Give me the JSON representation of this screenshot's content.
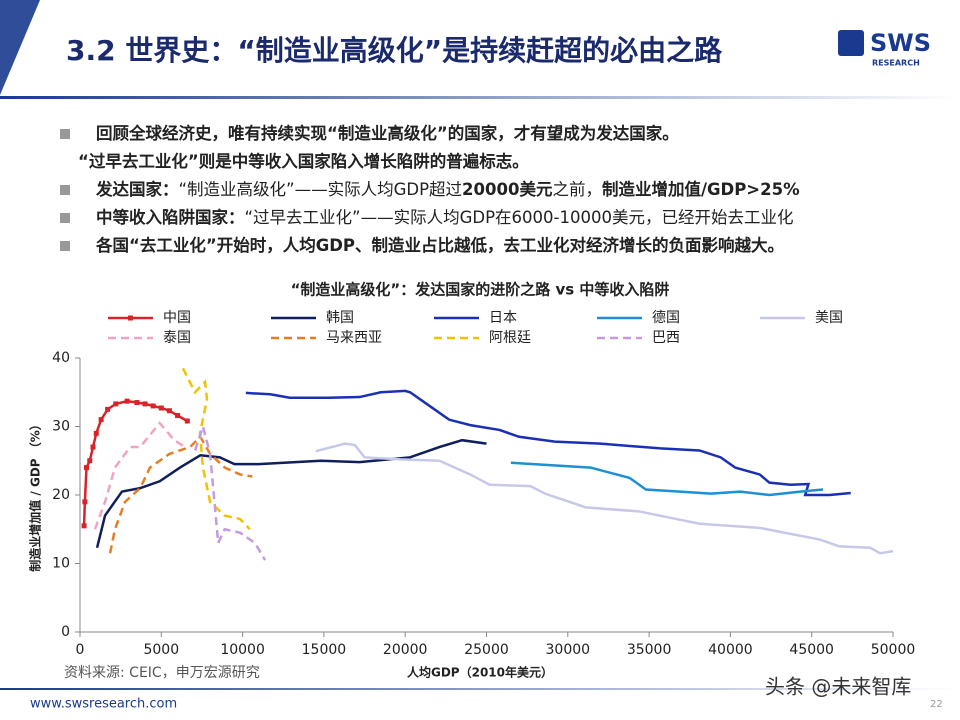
{
  "header": {
    "title": "3.2 世界史：“制造业高级化”是持续赶超的必由之路",
    "logo": "SWS",
    "logo_sub": "RESEARCH"
  },
  "bullets": [
    {
      "lines": [
        [
          {
            "text": "回顾全球经济史，唯有持续实现“制造业高级化”的国家，才有望成为发达国家。",
            "bold": true
          }
        ],
        [
          {
            "text": "“过早去工业化”则是中等收入国家陷入增长陷阱的普遍标志。",
            "bold": true
          }
        ]
      ]
    },
    {
      "lines": [
        [
          {
            "text": "发达国家：",
            "bold": true
          },
          {
            "text": "“制造业高级化”——实际人均GDP超过",
            "bold": false
          },
          {
            "text": "20000美元",
            "bold": true
          },
          {
            "text": "之前，",
            "bold": false
          },
          {
            "text": "制造业增加值/GDP>25%",
            "bold": true
          }
        ]
      ]
    },
    {
      "lines": [
        [
          {
            "text": "中等收入陷阱国家：",
            "bold": true
          },
          {
            "text": "“过早去工业化”——实际人均GDP在6000-10000美元，已经开始去工业化",
            "bold": false
          }
        ]
      ]
    },
    {
      "lines": [
        [
          {
            "text": "各国“去工业化”开始时，人均GDP、制造业占比越低，去工业化对经济增长的负面影响越大。",
            "bold": true
          }
        ]
      ]
    }
  ],
  "chart_data": {
    "type": "line",
    "title": "“制造业高级化”：发达国家的进阶之路 vs 中等收入陷阱",
    "x_label": "人均GDP（2010年美元）",
    "y_label": "制造业增加值 / GDP （%）",
    "xlim": [
      0,
      50000
    ],
    "xticks": [
      0,
      5000,
      10000,
      15000,
      20000,
      25000,
      30000,
      35000,
      40000,
      45000,
      50000
    ],
    "ylim": [
      0,
      40
    ],
    "yticks": [
      0,
      10,
      20,
      30,
      40
    ],
    "grid": false,
    "series": [
      {
        "name": "中国",
        "color": "#d9232a",
        "dashed": false,
        "marker": "square",
        "x": [
          250,
          300,
          400,
          600,
          800,
          1000,
          1300,
          1700,
          2200,
          2900,
          3500,
          4000,
          4500,
          5000,
          5500,
          6000,
          6600
        ],
        "values": [
          15.5,
          19,
          24,
          25,
          27,
          29,
          31,
          32.5,
          33.3,
          33.7,
          33.5,
          33.3,
          33,
          32.7,
          32.3,
          31.6,
          30.8
        ]
      },
      {
        "name": "韩国",
        "color": "#0f1f5c",
        "dashed": false,
        "x": [
          1050,
          1540,
          2580,
          3700,
          4900,
          6150,
          7400,
          8600,
          9500,
          11000,
          14800,
          17200,
          20300,
          22100,
          23500,
          25000
        ],
        "values": [
          12.3,
          17,
          20.5,
          21,
          22,
          24,
          25.8,
          25.5,
          24.5,
          24.5,
          25,
          24.8,
          25.5,
          27,
          28,
          27.5
        ]
      },
      {
        "name": "日本",
        "color": "#1b2fb5",
        "dashed": false,
        "x": [
          10200,
          11700,
          12900,
          15300,
          17200,
          18500,
          20000,
          20300,
          21500,
          22700,
          24000,
          25800,
          27000,
          29200,
          32000,
          35700,
          38100,
          39400,
          40300,
          41800,
          42400,
          43700,
          44800,
          44600,
          46100,
          47400
        ],
        "values": [
          34.9,
          34.7,
          34.2,
          34.2,
          34.3,
          35,
          35.2,
          35,
          33,
          31,
          30.2,
          29.5,
          28.5,
          27.8,
          27.5,
          26.8,
          26.5,
          25.5,
          24,
          23,
          21.8,
          21.5,
          21.6,
          20,
          20,
          20.3
        ]
      },
      {
        "name": "德国",
        "color": "#1e8fd2",
        "dashed": false,
        "x": [
          26500,
          31400,
          33800,
          34800,
          36900,
          38800,
          40600,
          42400,
          44300,
          45700
        ],
        "values": [
          24.7,
          24,
          22.5,
          20.8,
          20.5,
          20.2,
          20.5,
          20,
          20.5,
          20.8
        ]
      },
      {
        "name": "美国",
        "color": "#c6c8ea",
        "dashed": false,
        "x": [
          14500,
          16300,
          16900,
          17500,
          19700,
          22100,
          24000,
          25200,
          27700,
          28600,
          31100,
          34400,
          38100,
          41800,
          45500,
          46700,
          48600,
          49200,
          50000
        ],
        "values": [
          26.4,
          27.5,
          27.3,
          25.5,
          25.2,
          25,
          23,
          21.5,
          21.3,
          20.2,
          18.2,
          17.6,
          15.8,
          15.2,
          13.5,
          12.5,
          12.3,
          11.5,
          11.8
        ]
      },
      {
        "name": "泰国",
        "color": "#f2a3c4",
        "dashed": true,
        "x": [
          920,
          1540,
          2150,
          3080,
          3700,
          4900,
          5800,
          6460
        ],
        "values": [
          15,
          19,
          24,
          27,
          27,
          30.5,
          28,
          27
        ]
      },
      {
        "name": "马来西亚",
        "color": "#e67e22",
        "dashed": true,
        "x": [
          1850,
          2150,
          2770,
          3700,
          4300,
          5500,
          6770,
          7400,
          8000,
          8900,
          9840,
          10600
        ],
        "values": [
          11.5,
          15,
          19,
          21,
          24,
          26,
          27,
          28.5,
          26,
          24,
          23,
          22.7
        ]
      },
      {
        "name": "阿根廷",
        "color": "#f2c200",
        "dashed": true,
        "x": [
          6330,
          7070,
          7690,
          7810,
          7380,
          7560,
          8000,
          8900,
          9840,
          10450
        ],
        "values": [
          38.5,
          35,
          36.5,
          34,
          29,
          24,
          19,
          17,
          16.5,
          15
        ]
      },
      {
        "name": "巴西",
        "color": "#c49be0",
        "dashed": true,
        "x": [
          7080,
          7560,
          8000,
          8500,
          8900,
          9840,
          10760,
          11380
        ],
        "values": [
          26.5,
          30,
          26,
          13,
          15,
          14.5,
          13,
          10.5
        ]
      }
    ]
  },
  "source": "资料来源: CEIC，申万宏源研究",
  "footer": {
    "url": "www.swsresearch.com",
    "page": "22",
    "watermark": "头条 @未来智库"
  }
}
